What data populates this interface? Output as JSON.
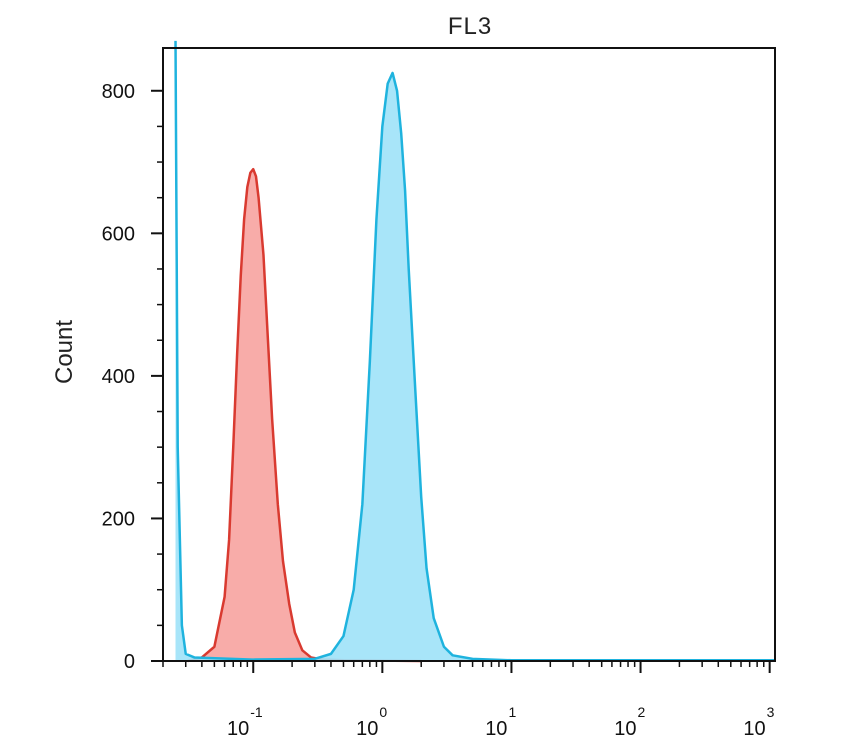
{
  "chart_data": {
    "type": "area",
    "title": "FL3",
    "xlabel": "",
    "ylabel": "Count",
    "x_scale": "log",
    "xlim": [
      0.02,
      1100
    ],
    "ylim": [
      0,
      860
    ],
    "y_ticks": [
      {
        "value": 0,
        "label": "0"
      },
      {
        "value": 200,
        "label": "200"
      },
      {
        "value": 400,
        "label": "400"
      },
      {
        "value": 600,
        "label": "600"
      },
      {
        "value": 800,
        "label": "800"
      }
    ],
    "x_ticks": [
      {
        "value": 0.1,
        "base": "10",
        "exp": "-1"
      },
      {
        "value": 1,
        "base": "10",
        "exp": "0"
      },
      {
        "value": 10,
        "base": "10",
        "exp": "1"
      },
      {
        "value": 100,
        "base": "10",
        "exp": "2"
      },
      {
        "value": 1000,
        "base": "10",
        "exp": "3"
      }
    ],
    "series": [
      {
        "fill": "#f7a3a0",
        "stroke": "#d93a30",
        "points": [
          [
            0.031,
            0
          ],
          [
            0.04,
            5
          ],
          [
            0.05,
            20
          ],
          [
            0.06,
            90
          ],
          [
            0.065,
            170
          ],
          [
            0.07,
            300
          ],
          [
            0.075,
            430
          ],
          [
            0.08,
            540
          ],
          [
            0.085,
            620
          ],
          [
            0.09,
            665
          ],
          [
            0.095,
            685
          ],
          [
            0.1,
            690
          ],
          [
            0.105,
            680
          ],
          [
            0.11,
            650
          ],
          [
            0.12,
            570
          ],
          [
            0.13,
            450
          ],
          [
            0.14,
            340
          ],
          [
            0.155,
            220
          ],
          [
            0.17,
            140
          ],
          [
            0.19,
            80
          ],
          [
            0.21,
            40
          ],
          [
            0.24,
            15
          ],
          [
            0.28,
            5
          ],
          [
            0.35,
            2
          ],
          [
            0.5,
            1
          ],
          [
            2.0,
            0
          ]
        ]
      },
      {
        "fill": "#9fe2f8",
        "stroke": "#1fb3de",
        "points": [
          [
            0.025,
            870
          ],
          [
            0.026,
            300
          ],
          [
            0.028,
            50
          ],
          [
            0.03,
            10
          ],
          [
            0.035,
            5
          ],
          [
            0.1,
            2
          ],
          [
            0.3,
            3
          ],
          [
            0.4,
            10
          ],
          [
            0.5,
            35
          ],
          [
            0.6,
            100
          ],
          [
            0.7,
            220
          ],
          [
            0.8,
            420
          ],
          [
            0.9,
            620
          ],
          [
            1.0,
            750
          ],
          [
            1.1,
            810
          ],
          [
            1.2,
            825
          ],
          [
            1.3,
            800
          ],
          [
            1.4,
            740
          ],
          [
            1.5,
            660
          ],
          [
            1.6,
            550
          ],
          [
            1.8,
            380
          ],
          [
            2.0,
            230
          ],
          [
            2.2,
            130
          ],
          [
            2.5,
            60
          ],
          [
            3.0,
            20
          ],
          [
            3.5,
            8
          ],
          [
            5,
            3
          ],
          [
            10,
            1
          ],
          [
            100,
            1
          ],
          [
            1100,
            1
          ]
        ]
      }
    ]
  }
}
